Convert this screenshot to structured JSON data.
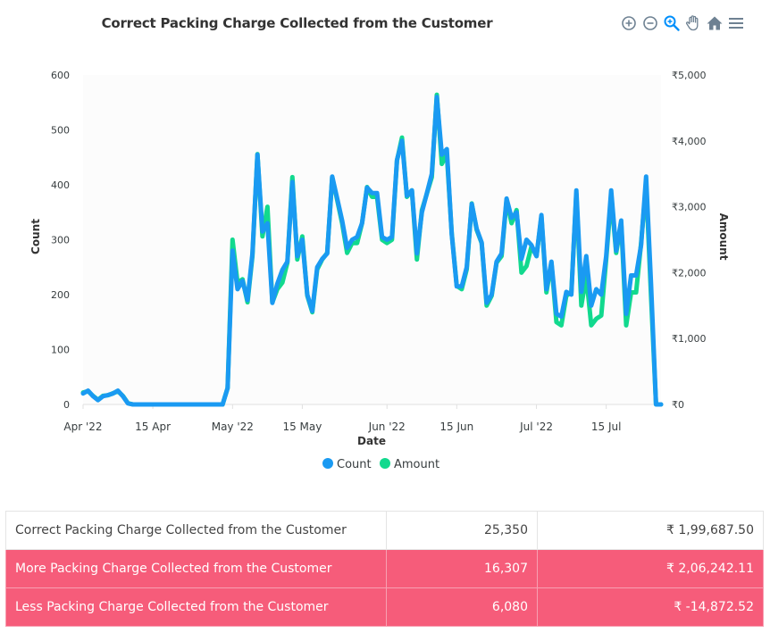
{
  "chart_data": {
    "type": "line",
    "title": "Correct Packing Charge Collected from the Customer",
    "xlabel": "Date",
    "ylabel": "Count",
    "y2label": "Amount",
    "x_ticks": [
      "Apr '22",
      "15 Apr",
      "May '22",
      "15 May",
      "Jun '22",
      "15 Jun",
      "Jul '22",
      "15 Jul"
    ],
    "x_tick_dates": [
      "2022-04-01",
      "2022-04-15",
      "2022-05-01",
      "2022-05-15",
      "2022-06-01",
      "2022-06-15",
      "2022-07-01",
      "2022-07-15"
    ],
    "xlim": [
      "2022-04-01",
      "2022-07-26"
    ],
    "ylim": [
      0,
      600
    ],
    "y_ticks": [
      "0",
      "100",
      "200",
      "300",
      "400",
      "500",
      "600"
    ],
    "y2lim": [
      0,
      5000
    ],
    "y2_ticks": [
      "₹0",
      "₹1,000",
      "₹2,000",
      "₹3,000",
      "₹4,000",
      "₹5,000"
    ],
    "legend_position": "bottom-center",
    "grid": false,
    "colors": {
      "count": "#1a9af2",
      "amount": "#12d98e"
    },
    "x": [
      "2022-04-01",
      "2022-04-02",
      "2022-04-03",
      "2022-04-04",
      "2022-04-05",
      "2022-04-06",
      "2022-04-07",
      "2022-04-08",
      "2022-04-09",
      "2022-04-10",
      "2022-04-11",
      "2022-04-12",
      "2022-04-13",
      "2022-04-14",
      "2022-04-15",
      "2022-04-16",
      "2022-04-17",
      "2022-04-18",
      "2022-04-19",
      "2022-04-20",
      "2022-04-21",
      "2022-04-22",
      "2022-04-23",
      "2022-04-24",
      "2022-04-25",
      "2022-04-26",
      "2022-04-27",
      "2022-04-28",
      "2022-04-29",
      "2022-04-30",
      "2022-05-01",
      "2022-05-02",
      "2022-05-03",
      "2022-05-04",
      "2022-05-05",
      "2022-05-06",
      "2022-05-07",
      "2022-05-08",
      "2022-05-09",
      "2022-05-10",
      "2022-05-11",
      "2022-05-12",
      "2022-05-13",
      "2022-05-14",
      "2022-05-15",
      "2022-05-16",
      "2022-05-17",
      "2022-05-18",
      "2022-05-19",
      "2022-05-20",
      "2022-05-21",
      "2022-05-22",
      "2022-05-23",
      "2022-05-24",
      "2022-05-25",
      "2022-05-26",
      "2022-05-27",
      "2022-05-28",
      "2022-05-29",
      "2022-05-30",
      "2022-05-31",
      "2022-06-01",
      "2022-06-02",
      "2022-06-03",
      "2022-06-04",
      "2022-06-05",
      "2022-06-06",
      "2022-06-07",
      "2022-06-08",
      "2022-06-09",
      "2022-06-10",
      "2022-06-11",
      "2022-06-12",
      "2022-06-13",
      "2022-06-14",
      "2022-06-15",
      "2022-06-16",
      "2022-06-17",
      "2022-06-18",
      "2022-06-19",
      "2022-06-20",
      "2022-06-21",
      "2022-06-22",
      "2022-06-23",
      "2022-06-24",
      "2022-06-25",
      "2022-06-26",
      "2022-06-27",
      "2022-06-28",
      "2022-06-29",
      "2022-06-30",
      "2022-07-01",
      "2022-07-02",
      "2022-07-03",
      "2022-07-04",
      "2022-07-05",
      "2022-07-06",
      "2022-07-07",
      "2022-07-08",
      "2022-07-09",
      "2022-07-10",
      "2022-07-11",
      "2022-07-12",
      "2022-07-13",
      "2022-07-14",
      "2022-07-15",
      "2022-07-16",
      "2022-07-17",
      "2022-07-18",
      "2022-07-19",
      "2022-07-20",
      "2022-07-21",
      "2022-07-22",
      "2022-07-23",
      "2022-07-24",
      "2022-07-25",
      "2022-07-26"
    ],
    "series": [
      {
        "name": "Count",
        "axis": "left",
        "values": [
          20,
          25,
          15,
          8,
          15,
          17,
          20,
          25,
          15,
          2,
          0,
          0,
          0,
          0,
          0,
          0,
          0,
          0,
          0,
          0,
          0,
          0,
          0,
          0,
          0,
          0,
          0,
          0,
          0,
          30,
          280,
          210,
          225,
          190,
          275,
          455,
          315,
          330,
          185,
          220,
          245,
          260,
          405,
          270,
          300,
          200,
          170,
          250,
          265,
          275,
          415,
          375,
          335,
          285,
          300,
          305,
          330,
          395,
          385,
          385,
          305,
          300,
          305,
          445,
          480,
          380,
          390,
          275,
          350,
          385,
          420,
          560,
          455,
          465,
          310,
          215,
          215,
          250,
          365,
          320,
          295,
          185,
          200,
          260,
          275,
          375,
          340,
          350,
          265,
          300,
          290,
          270,
          345,
          210,
          260,
          165,
          160,
          205,
          200,
          390,
          205,
          270,
          180,
          210,
          200,
          270,
          390,
          280,
          335,
          165,
          235,
          235,
          290,
          415,
          220,
          0,
          0
        ]
      },
      {
        "name": "Amount",
        "axis": "right",
        "values": [
          180,
          200,
          130,
          70,
          130,
          140,
          170,
          200,
          130,
          20,
          0,
          0,
          0,
          0,
          0,
          0,
          0,
          0,
          0,
          0,
          0,
          0,
          0,
          0,
          0,
          0,
          0,
          0,
          0,
          250,
          2500,
          1850,
          1900,
          1550,
          2250,
          3800,
          2550,
          3000,
          1550,
          1750,
          1850,
          2150,
          3450,
          2200,
          2550,
          1650,
          1400,
          2050,
          2200,
          2300,
          3450,
          3100,
          2750,
          2300,
          2450,
          2450,
          2750,
          3300,
          3150,
          3150,
          2500,
          2450,
          2500,
          3700,
          4050,
          3150,
          3250,
          2200,
          2950,
          3200,
          3450,
          4700,
          3650,
          3800,
          2600,
          1800,
          1750,
          2050,
          3050,
          2650,
          2450,
          1500,
          1650,
          2150,
          2250,
          3100,
          2750,
          2950,
          2000,
          2100,
          2400,
          2250,
          2850,
          1700,
          2150,
          1250,
          1200,
          1650,
          1700,
          3200,
          1500,
          1950,
          1200,
          1300,
          1350,
          2200,
          3150,
          2300,
          2750,
          1200,
          1700,
          1700,
          2450,
          3350,
          1650,
          0,
          0
        ]
      }
    ]
  },
  "toolbar": {
    "icons": [
      "zoom-in-icon",
      "zoom-out-icon",
      "magnifier-icon",
      "pan-hand-icon",
      "home-icon",
      "menu-icon"
    ]
  },
  "summary_table": {
    "rows": [
      {
        "label": "Correct Packing Charge Collected from the Customer",
        "count": "25,350",
        "amount": "₹ 1,99,687.50",
        "style": "normal"
      },
      {
        "label": "More Packing Charge Collected from the Customer",
        "count": "16,307",
        "amount": "₹ 2,06,242.11",
        "style": "red"
      },
      {
        "label": "Less Packing Charge Collected from the Customer",
        "count": "6,080",
        "amount": "₹ -14,872.52",
        "style": "red"
      }
    ]
  }
}
